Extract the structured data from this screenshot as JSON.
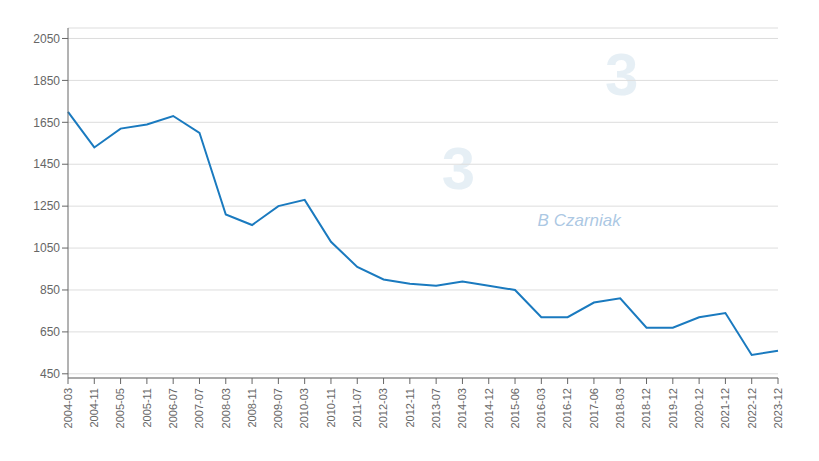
{
  "chart_data": {
    "type": "line",
    "categories": [
      "2004-03",
      "2004-11",
      "2005-05",
      "2005-11",
      "2006-07",
      "2007-07",
      "2008-03",
      "2008-11",
      "2009-07",
      "2010-03",
      "2010-11",
      "2011-07",
      "2012-03",
      "2012-11",
      "2013-07",
      "2014-03",
      "2014-12",
      "2015-06",
      "2016-03",
      "2016-12",
      "2017-06",
      "2018-03",
      "2018-12",
      "2019-12",
      "2020-12",
      "2021-12",
      "2022-12",
      "2023-12"
    ],
    "values": [
      1700,
      1530,
      1620,
      1640,
      1680,
      1600,
      1210,
      1160,
      1250,
      1280,
      1080,
      960,
      900,
      880,
      870,
      890,
      870,
      850,
      720,
      720,
      790,
      810,
      670,
      670,
      720,
      740,
      540,
      560
    ],
    "color": "#1a7abf",
    "ylim": [
      430,
      2100
    ],
    "yticks": [
      450,
      650,
      850,
      1050,
      1250,
      1450,
      1650,
      1850,
      2050
    ],
    "grid": true,
    "annotations": [
      "B Czarniak",
      "3",
      "3"
    ]
  }
}
